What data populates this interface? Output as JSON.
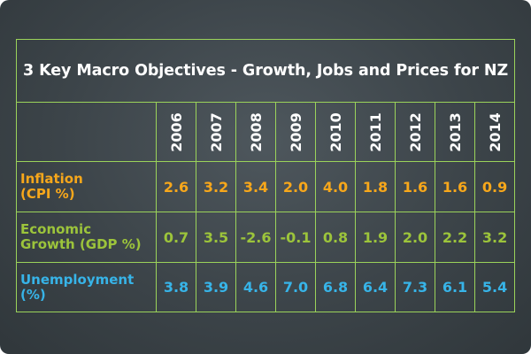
{
  "chart_data": {
    "type": "table",
    "title": "3 Key Macro Objectives - Growth, Jobs and Prices for NZ",
    "columns": [
      "2006",
      "2007",
      "2008",
      "2009",
      "2010",
      "2011",
      "2012",
      "2013",
      "2014"
    ],
    "rows": [
      {
        "label_line1": "Inflation",
        "label_line2": "(CPI %)",
        "color": "#f7a71b",
        "values": [
          "2.6",
          "3.2",
          "3.4",
          "2.0",
          "4.0",
          "1.8",
          "1.6",
          "1.6",
          "0.9"
        ]
      },
      {
        "label_line1": "Economic",
        "label_line2": "Growth (GDP %)",
        "color": "#9cc43b",
        "values": [
          "0.7",
          "3.5",
          "-2.6",
          "-0.1",
          "0.8",
          "1.9",
          "2.0",
          "2.2",
          "3.2"
        ]
      },
      {
        "label_line1": "Unemployment",
        "label_line2": "(%)",
        "color": "#37b4e8",
        "values": [
          "3.8",
          "3.9",
          "4.6",
          "7.0",
          "6.8",
          "6.4",
          "7.3",
          "6.1",
          "5.4"
        ]
      }
    ]
  },
  "theme": {
    "background": "#3c4449",
    "grid_line": "#9bd35a",
    "title_color": "#ffffff"
  }
}
